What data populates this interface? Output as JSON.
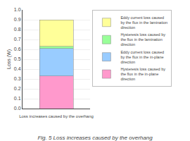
{
  "chart_data": {
    "type": "bar",
    "stacked": true,
    "title": "Fig. 5 Loss increases caused by the overhang",
    "xlabel": "Loss increases caused by the overhang",
    "ylabel": "Loss (W)",
    "categories": [
      null
    ],
    "series": [
      {
        "name": "Hysteresis loss caused by\nthe flux in the in-plane\ndirection",
        "color": "#FF99CC",
        "values": [
          0.33
        ]
      },
      {
        "name": "Eddy current loss caused\nby the flux in the in-plane\ndirection",
        "color": "#99CCFF",
        "values": [
          0.28
        ]
      },
      {
        "name": "Hysteresis loss caused by\nthe flux in the lamination\ndirection",
        "color": "#99FF99",
        "values": [
          0.02
        ]
      },
      {
        "name": "Eddy current loss caused\nby the flux in the lamination\ndirection",
        "color": "#FFFF99",
        "values": [
          0.27
        ]
      }
    ],
    "ylim": [
      0.0,
      1.0
    ],
    "yticks": [
      {
        "value": 0.0,
        "label": "0.0"
      },
      0.1,
      0.2,
      0.3,
      0.4,
      0.5,
      0.6,
      0.7,
      0.8,
      0.9,
      {
        "value": 1.0,
        "label": "1.0"
      }
    ],
    "grid": true,
    "legend": "upper right"
  }
}
